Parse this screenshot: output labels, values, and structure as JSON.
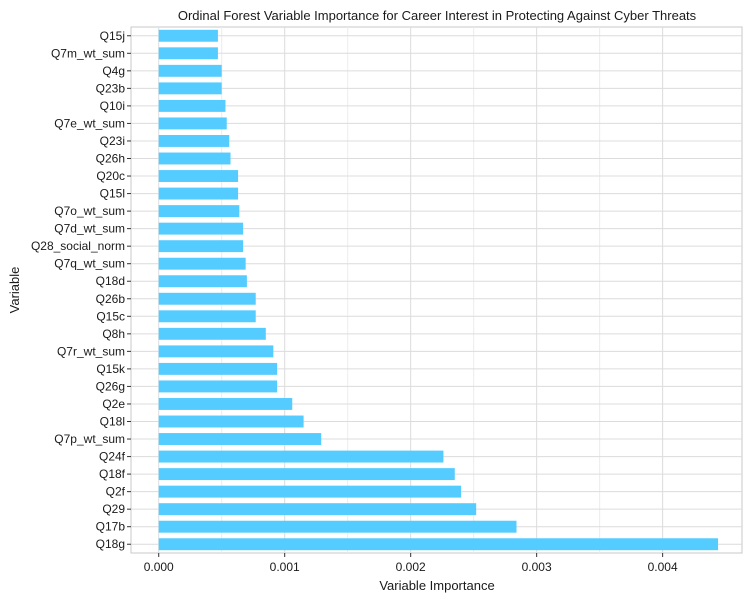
{
  "chart_data": {
    "type": "bar",
    "orientation": "horizontal",
    "title": "Ordinal Forest Variable Importance for Career Interest in Protecting Against Cyber Threats",
    "xlabel": "Variable Importance",
    "ylabel": "Variable",
    "xlim": [
      -0.00022,
      0.00463
    ],
    "x_ticks": [
      0.0,
      0.001,
      0.002,
      0.003,
      0.004
    ],
    "x_tick_labels": [
      "0.000",
      "0.001",
      "0.002",
      "0.003",
      "0.004"
    ],
    "grid": true,
    "legend": "none",
    "bar_color": "#55CCFF",
    "categories": [
      "Q15j",
      "Q7m_wt_sum",
      "Q4g",
      "Q23b",
      "Q10i",
      "Q7e_wt_sum",
      "Q23i",
      "Q26h",
      "Q20c",
      "Q15l",
      "Q7o_wt_sum",
      "Q7d_wt_sum",
      "Q28_social_norm",
      "Q7q_wt_sum",
      "Q18d",
      "Q26b",
      "Q15c",
      "Q8h",
      "Q7r_wt_sum",
      "Q15k",
      "Q26g",
      "Q2e",
      "Q18l",
      "Q7p_wt_sum",
      "Q24f",
      "Q18f",
      "Q2f",
      "Q29",
      "Q17b",
      "Q18g"
    ],
    "values": [
      0.00047,
      0.00047,
      0.0005,
      0.0005,
      0.00053,
      0.00054,
      0.00056,
      0.00057,
      0.00063,
      0.00063,
      0.00064,
      0.00067,
      0.00067,
      0.00069,
      0.0007,
      0.00077,
      0.00077,
      0.00085,
      0.00091,
      0.00094,
      0.00094,
      0.00106,
      0.00115,
      0.00129,
      0.00226,
      0.00235,
      0.0024,
      0.00252,
      0.00284,
      0.00444
    ]
  }
}
